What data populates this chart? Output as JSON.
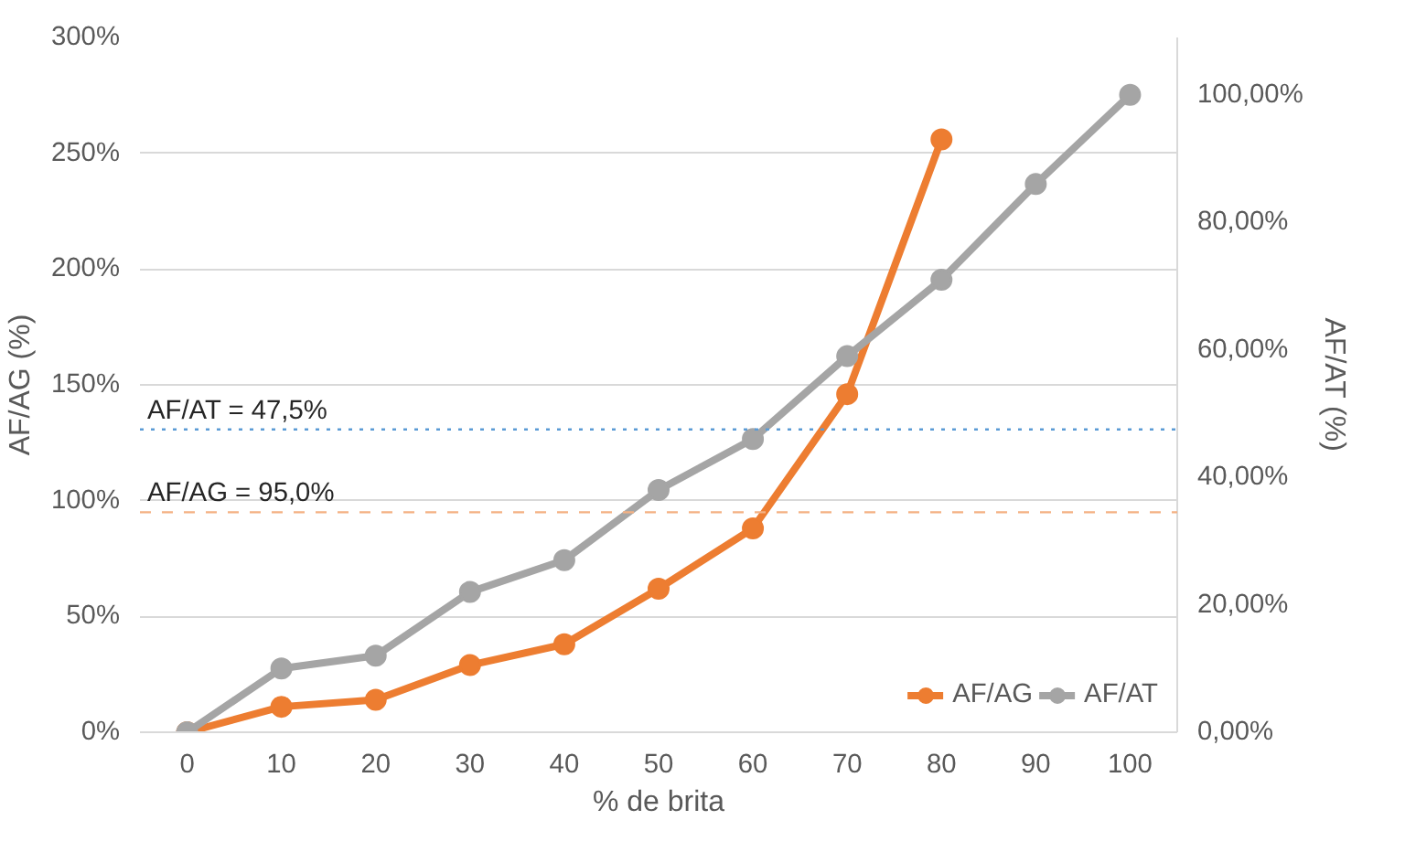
{
  "chart_data": {
    "type": "line",
    "xlabel": "% de brita",
    "ylabel": "AF/AG (%)",
    "y2label": "AF/AT (%)",
    "categories": [
      "0",
      "10",
      "20",
      "30",
      "40",
      "50",
      "60",
      "70",
      "80",
      "90",
      "100"
    ],
    "series": [
      {
        "name": "AF/AG",
        "color": "#ed7d31",
        "values": [
          0,
          11,
          14,
          29,
          38,
          62,
          88,
          146,
          256,
          null,
          null
        ]
      },
      {
        "name": "AF/AT",
        "color": "#a5a5a5",
        "axis": "y2",
        "values": [
          0,
          10,
          12,
          22,
          27,
          38,
          46,
          59,
          71,
          86,
          100
        ]
      }
    ],
    "ylim": [
      0,
      300
    ],
    "yticks": [
      {
        "value": 0,
        "label": "0%"
      },
      {
        "value": 50,
        "label": "50%"
      },
      {
        "value": 100,
        "label": "100%"
      },
      {
        "value": 150,
        "label": "150%"
      },
      {
        "value": 200,
        "label": "200%"
      },
      {
        "value": 250,
        "label": "250%"
      },
      {
        "value": 300,
        "label": "300%"
      }
    ],
    "y2lim": [
      0,
      109
    ],
    "y2ticks": [
      {
        "value": 0,
        "label": "0,00%"
      },
      {
        "value": 20,
        "label": "20,00%"
      },
      {
        "value": 40,
        "label": "40,00%"
      },
      {
        "value": 60,
        "label": "60,00%"
      },
      {
        "value": 80,
        "label": "80,00%"
      },
      {
        "value": 100,
        "label": "100,00%"
      }
    ],
    "ref_lines": [
      {
        "axis": "y2",
        "value": 47.5,
        "label": "AF/AT = 47,5%",
        "color": "#5b9bd5",
        "line_style": "dotted"
      },
      {
        "axis": "y",
        "value": 95,
        "label": "AF/AG = 95,0%",
        "color": "#f4b183",
        "line_style": "dashed"
      }
    ],
    "grid": "y",
    "legend": "bottom",
    "marker": "circle",
    "line_style": "solid"
  }
}
